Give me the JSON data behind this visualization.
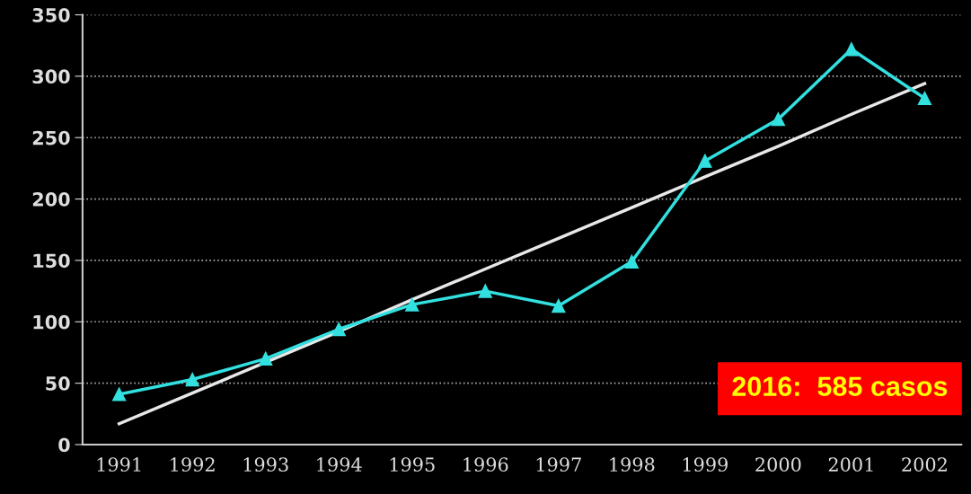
{
  "chart_data": {
    "type": "line",
    "categories": [
      "1991",
      "1992",
      "1993",
      "1994",
      "1995",
      "1996",
      "1997",
      "1998",
      "1999",
      "2000",
      "2001",
      "2002"
    ],
    "series": [
      {
        "color": "#33e0e0",
        "values": [
          41,
          53,
          70,
          94,
          114,
          125,
          113,
          149,
          231,
          265,
          322,
          282
        ],
        "marker": "triangle"
      },
      {
        "type": "line",
        "color": "#e8e8e8",
        "values": [
          17,
          42,
          67,
          92,
          118,
          143,
          168,
          193,
          218,
          243,
          269,
          294
        ],
        "marker": "none"
      }
    ],
    "ylim": [
      0,
      350
    ],
    "yticks": [
      0,
      50,
      100,
      150,
      200,
      250,
      300,
      350
    ],
    "grid": "y",
    "line_style": "solid",
    "annotations": [
      "2016:  585 casos"
    ]
  }
}
